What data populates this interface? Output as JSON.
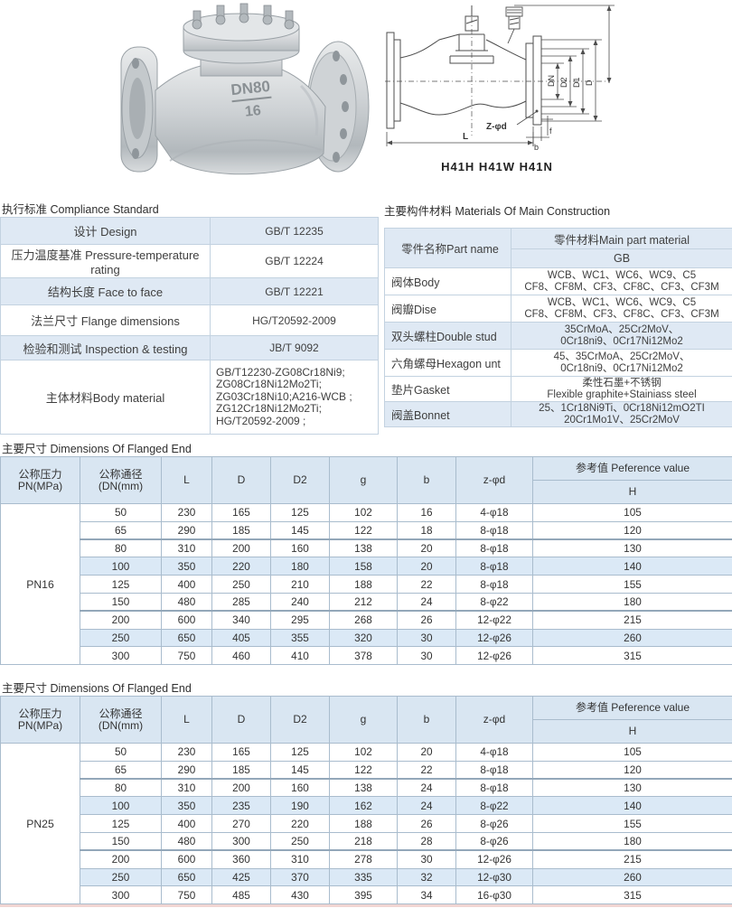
{
  "colors": {
    "shade_blue": "#dfe9f4",
    "header_blue": "#d9e6f2",
    "highlight_blue": "#dbe9f6"
  },
  "photo": {
    "mark_dn": "DN80",
    "mark_pn": "16"
  },
  "drawing": {
    "models": "H41H  H41W  H41N",
    "labels": {
      "L": "L",
      "b": "b",
      "f": "f",
      "zd": "Z-φd",
      "DN": "DN",
      "D2": "D2",
      "D1": "D1",
      "D": "D"
    }
  },
  "compliance": {
    "title": "执行标准 Compliance Standard",
    "rows": [
      {
        "label": "设计 Design",
        "value": "GB/T 12235"
      },
      {
        "label": "压力温度基准 Pressure-temperature rating",
        "value": "GB/T 12224"
      },
      {
        "label": "结构长度 Face to face",
        "value": "GB/T 12221"
      },
      {
        "label": "法兰尺寸 Flange dimensions",
        "value": "HG/T20592-2009"
      },
      {
        "label": "检验和测试 Inspection & testing",
        "value": "JB/T 9092"
      },
      {
        "label": "主体材料Body material",
        "value": "GB/T12230-ZG08Cr18Ni9;\nZG08Cr18Ni12Mo2Ti;\nZG03Cr18Ni10;A216-WCB ;\nZG12Cr18Ni12Mo2Ti;\nHG/T20592-2009 ;"
      }
    ]
  },
  "materials": {
    "title": "主要构件材料 Materials Of Main Construction",
    "col_part": "零件名称Part name",
    "col_material": "零件材料Main part material",
    "col_sub": "GB",
    "rows": [
      {
        "name": "阀体Body",
        "value": "WCB、WC1、WC6、WC9、C5\nCF8、CF8M、CF3、CF8C、CF3、CF3M"
      },
      {
        "name": "阀瓣Dise",
        "value": "WCB、WC1、WC6、WC9、C5\nCF8、CF8M、CF3、CF8C、CF3、CF3M"
      },
      {
        "name": "双头螺柱Double stud",
        "value": "35CrMoA、25Cr2MoV、\n0Cr18ni9、0Cr17Ni12Mo2"
      },
      {
        "name": "六角螺母Hexagon unt",
        "value": "45、35CrMoA、25Cr2MoV、\n0Cr18ni9、0Cr17Ni12Mo2"
      },
      {
        "name": "垫片Gasket",
        "value": "柔性石墨+不锈钢\nFlexible graphite+Stainiass steel"
      },
      {
        "name": "阀盖Bonnet",
        "value": "25、1Cr18Ni9Ti、0Cr18Ni12mO2TI\n20Cr1Mo1V、25Cr2MoV"
      }
    ],
    "shaded_rows": [
      2,
      5
    ]
  },
  "dim_headers": {
    "pressure": "公称压力\nPN(MPa)",
    "dn": "公称通径\n(DN(mm)",
    "l": "L",
    "d": "D",
    "d2": "D2",
    "g": "g",
    "b": "b",
    "zd": "z-φd",
    "ref": "参考值 Peference value",
    "ref_sub": "H"
  },
  "dimensions_pn16": {
    "title": "主要尺寸 Dimensions Of Flanged End",
    "pressure": "PN16",
    "rows": [
      [
        "50",
        "230",
        "165",
        "125",
        "102",
        "16",
        "4-φ18",
        "105"
      ],
      [
        "65",
        "290",
        "185",
        "145",
        "122",
        "18",
        "8-φ18",
        "120"
      ],
      [
        "80",
        "310",
        "200",
        "160",
        "138",
        "20",
        "8-φ18",
        "130"
      ],
      [
        "100",
        "350",
        "220",
        "180",
        "158",
        "20",
        "8-φ18",
        "140"
      ],
      [
        "125",
        "400",
        "250",
        "210",
        "188",
        "22",
        "8-φ18",
        "155"
      ],
      [
        "150",
        "480",
        "285",
        "240",
        "212",
        "24",
        "8-φ22",
        "180"
      ],
      [
        "200",
        "600",
        "340",
        "295",
        "268",
        "26",
        "12-φ22",
        "215"
      ],
      [
        "250",
        "650",
        "405",
        "355",
        "320",
        "30",
        "12-φ26",
        "260"
      ],
      [
        "300",
        "750",
        "460",
        "410",
        "378",
        "30",
        "12-φ26",
        "315"
      ]
    ],
    "highlight_rows": [
      3,
      7
    ],
    "group_break_rows": [
      2,
      6
    ]
  },
  "dimensions_pn25": {
    "title": "主要尺寸 Dimensions Of Flanged End",
    "pressure": "PN25",
    "rows": [
      [
        "50",
        "230",
        "165",
        "125",
        "102",
        "20",
        "4-φ18",
        "105"
      ],
      [
        "65",
        "290",
        "185",
        "145",
        "122",
        "22",
        "8-φ18",
        "120"
      ],
      [
        "80",
        "310",
        "200",
        "160",
        "138",
        "24",
        "8-φ18",
        "130"
      ],
      [
        "100",
        "350",
        "235",
        "190",
        "162",
        "24",
        "8-φ22",
        "140"
      ],
      [
        "125",
        "400",
        "270",
        "220",
        "188",
        "26",
        "8-φ26",
        "155"
      ],
      [
        "150",
        "480",
        "300",
        "250",
        "218",
        "28",
        "8-φ26",
        "180"
      ],
      [
        "200",
        "600",
        "360",
        "310",
        "278",
        "30",
        "12-φ26",
        "215"
      ],
      [
        "250",
        "650",
        "425",
        "370",
        "335",
        "32",
        "12-φ30",
        "260"
      ],
      [
        "300",
        "750",
        "485",
        "430",
        "395",
        "34",
        "16-φ30",
        "315"
      ]
    ],
    "highlight_rows": [
      3,
      7
    ],
    "group_break_rows": [
      2,
      6
    ]
  }
}
